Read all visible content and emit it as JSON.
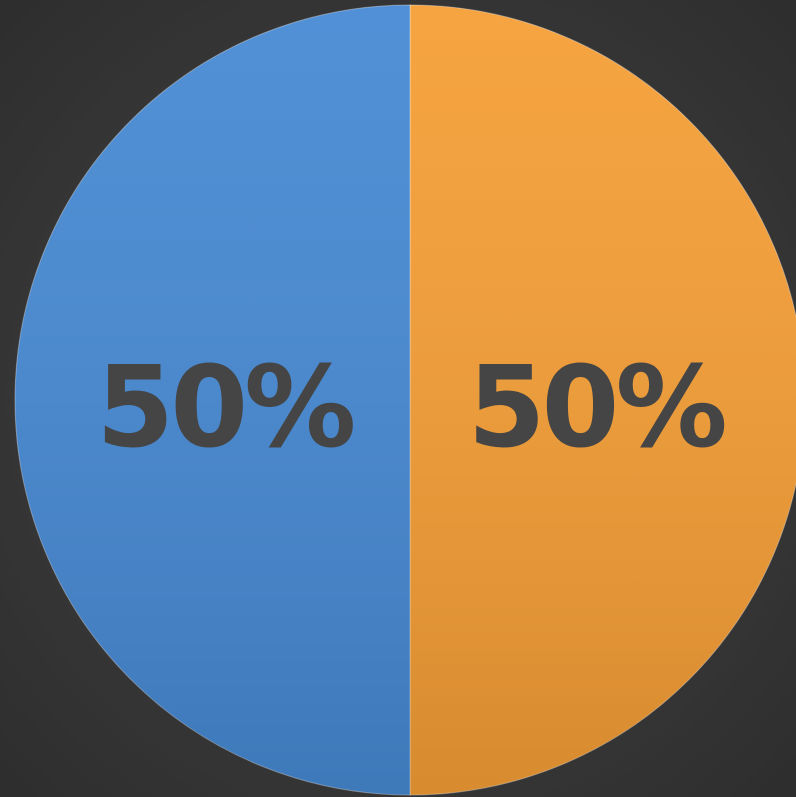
{
  "chart_data": {
    "type": "pie",
    "values": [
      50,
      50
    ],
    "value_labels": [
      "50%",
      "50%"
    ],
    "colors": [
      "#f59e35",
      "#4689d3"
    ]
  }
}
